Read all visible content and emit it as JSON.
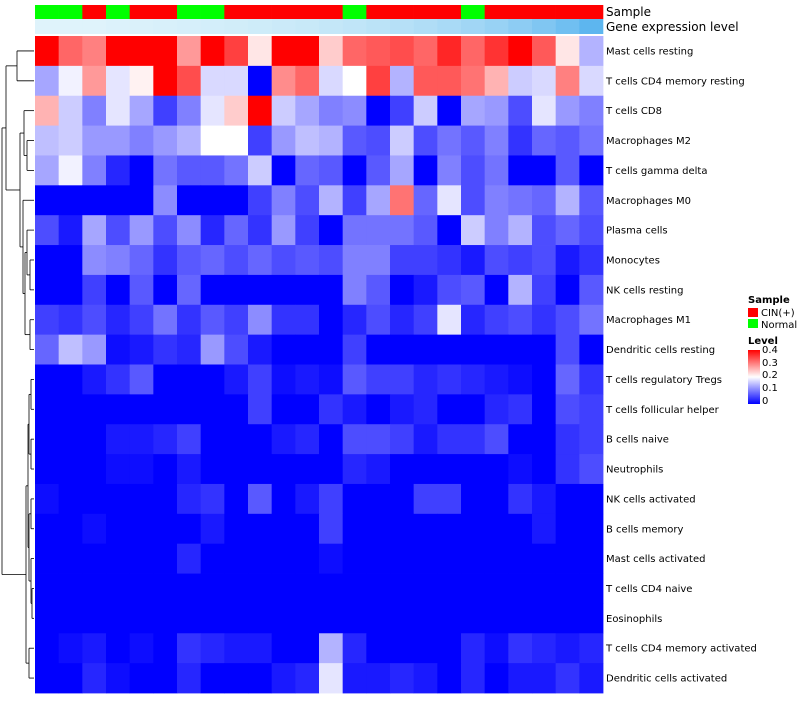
{
  "chart_data": {
    "type": "heatmap",
    "title": "",
    "xlabel": "",
    "ylabel": "",
    "value_range": [
      0,
      0.4
    ],
    "color_scale": [
      "#0000ff",
      "#ffffff",
      "#ff0000"
    ],
    "annotation_tracks": {
      "sample_label": "Sample",
      "expression_label": "Gene expression level",
      "sample": [
        "Normal",
        "Normal",
        "CIN(+)",
        "Normal",
        "CIN(+)",
        "CIN(+)",
        "Normal",
        "Normal",
        "CIN(+)",
        "CIN(+)",
        "CIN(+)",
        "CIN(+)",
        "CIN(+)",
        "Normal",
        "CIN(+)",
        "CIN(+)",
        "CIN(+)",
        "CIN(+)",
        "Normal",
        "CIN(+)",
        "CIN(+)",
        "CIN(+)",
        "CIN(+)",
        "CIN(+)"
      ],
      "expression_colors": [
        "#dff3fb",
        "#dff3fb",
        "#dff3fb",
        "#dcf2fb",
        "#daf1fa",
        "#d8f0fa",
        "#d6effa",
        "#d3eefa",
        "#d1edf9",
        "#ceecf9",
        "#cbeaf9",
        "#c8e9f8",
        "#c4e7f8",
        "#c0e5f8",
        "#bbe3f7",
        "#b6e0f7",
        "#b0ddf6",
        "#a9daf6",
        "#a1d6f5",
        "#98d2f4",
        "#8dccf3",
        "#80c6f2",
        "#70bff1",
        "#5db6ef"
      ]
    },
    "legend": {
      "sample_title": "Sample",
      "sample_items": [
        {
          "label": "CIN(+)",
          "color": "#ff0000"
        },
        {
          "label": "Normal",
          "color": "#00ff00"
        }
      ],
      "level_title": "Level",
      "level_ticks": [
        "0.4",
        "0.3",
        "0.2",
        "0.1",
        "0"
      ]
    },
    "rows": [
      "Mast cells resting",
      "T cells CD4 memory resting",
      "T cells CD8",
      "Macrophages M2",
      "T cells gamma delta",
      "Macrophages M0",
      "Plasma cells",
      "Monocytes",
      "NK cells resting",
      "Macrophages M1",
      "Dendritic cells resting",
      "T cells regulatory  Tregs",
      "T cells follicular helper",
      "B cells naive",
      "Neutrophils",
      "NK cells activated",
      "B cells memory",
      "Mast cells activated",
      "T cells CD4 naive",
      "Eosinophils",
      "T cells CD4 memory activated",
      "Dendritic cells activated"
    ],
    "values": [
      [
        0.4,
        0.32,
        0.3,
        0.4,
        0.4,
        0.4,
        0.28,
        0.4,
        0.35,
        0.22,
        0.4,
        0.4,
        0.24,
        0.32,
        0.33,
        0.34,
        0.32,
        0.37,
        0.32,
        0.36,
        0.4,
        0.33,
        0.22,
        0.14
      ],
      [
        0.13,
        0.19,
        0.28,
        0.18,
        0.21,
        0.4,
        0.34,
        0.17,
        0.17,
        0.0,
        0.29,
        0.32,
        0.17,
        0.2,
        0.35,
        0.14,
        0.33,
        0.33,
        0.31,
        0.26,
        0.16,
        0.17,
        0.3,
        0.17
      ],
      [
        0.26,
        0.16,
        0.1,
        0.18,
        0.13,
        0.05,
        0.1,
        0.18,
        0.24,
        0.4,
        0.16,
        0.13,
        0.1,
        0.11,
        0.0,
        0.05,
        0.16,
        0.0,
        0.13,
        0.12,
        0.06,
        0.18,
        0.12,
        0.1
      ],
      [
        0.15,
        0.16,
        0.12,
        0.12,
        0.1,
        0.12,
        0.14,
        0.2,
        0.2,
        0.05,
        0.12,
        0.15,
        0.14,
        0.07,
        0.06,
        0.16,
        0.06,
        0.09,
        0.07,
        0.1,
        0.04,
        0.08,
        0.07,
        0.09
      ],
      [
        0.13,
        0.19,
        0.1,
        0.03,
        0.0,
        0.09,
        0.07,
        0.07,
        0.09,
        0.16,
        0.0,
        0.08,
        0.07,
        0.0,
        0.07,
        0.13,
        0.0,
        0.1,
        0.06,
        0.09,
        0.0,
        0.0,
        0.07,
        0.0
      ],
      [
        0.0,
        0.0,
        0.0,
        0.0,
        0.0,
        0.11,
        0.0,
        0.0,
        0.0,
        0.05,
        0.1,
        0.06,
        0.14,
        0.05,
        0.13,
        0.31,
        0.08,
        0.18,
        0.06,
        0.1,
        0.09,
        0.08,
        0.14,
        0.07
      ],
      [
        0.06,
        0.02,
        0.13,
        0.06,
        0.12,
        0.06,
        0.11,
        0.03,
        0.08,
        0.04,
        0.12,
        0.05,
        0.0,
        0.09,
        0.09,
        0.09,
        0.07,
        0.0,
        0.16,
        0.1,
        0.14,
        0.06,
        0.08,
        0.06
      ],
      [
        0.0,
        0.0,
        0.11,
        0.1,
        0.08,
        0.04,
        0.07,
        0.08,
        0.06,
        0.08,
        0.06,
        0.07,
        0.06,
        0.1,
        0.1,
        0.05,
        0.05,
        0.04,
        0.02,
        0.06,
        0.05,
        0.06,
        0.02,
        0.04
      ],
      [
        0.0,
        0.0,
        0.05,
        0.0,
        0.07,
        0.0,
        0.08,
        0.0,
        0.0,
        0.0,
        0.0,
        0.0,
        0.0,
        0.1,
        0.07,
        0.0,
        0.02,
        0.06,
        0.07,
        0.0,
        0.14,
        0.05,
        0.0,
        0.07
      ],
      [
        0.05,
        0.04,
        0.06,
        0.03,
        0.05,
        0.09,
        0.04,
        0.07,
        0.05,
        0.11,
        0.04,
        0.04,
        0.0,
        0.03,
        0.06,
        0.03,
        0.05,
        0.18,
        0.03,
        0.05,
        0.06,
        0.04,
        0.06,
        0.09
      ],
      [
        0.08,
        0.15,
        0.12,
        0.01,
        0.02,
        0.04,
        0.03,
        0.12,
        0.06,
        0.02,
        0.0,
        0.0,
        0.0,
        0.05,
        0.0,
        0.0,
        0.0,
        0.0,
        0.0,
        0.0,
        0.0,
        0.0,
        0.06,
        0.0
      ],
      [
        0.0,
        0.0,
        0.02,
        0.04,
        0.07,
        0.0,
        0.0,
        0.0,
        0.02,
        0.05,
        0.01,
        0.02,
        0.01,
        0.07,
        0.05,
        0.05,
        0.03,
        0.04,
        0.03,
        0.02,
        0.01,
        0.0,
        0.08,
        0.04
      ],
      [
        0.0,
        0.0,
        0.0,
        0.0,
        0.0,
        0.0,
        0.0,
        0.0,
        0.0,
        0.05,
        0.0,
        0.0,
        0.04,
        0.02,
        0.0,
        0.02,
        0.03,
        0.0,
        0.0,
        0.03,
        0.04,
        0.0,
        0.06,
        0.05
      ],
      [
        0.0,
        0.0,
        0.0,
        0.02,
        0.02,
        0.03,
        0.05,
        0.0,
        0.0,
        0.0,
        0.02,
        0.03,
        0.0,
        0.06,
        0.06,
        0.05,
        0.02,
        0.04,
        0.04,
        0.06,
        0.0,
        0.0,
        0.04,
        0.05
      ],
      [
        0.0,
        0.0,
        0.0,
        0.01,
        0.01,
        0.0,
        0.02,
        0.0,
        0.0,
        0.0,
        0.0,
        0.0,
        0.0,
        0.03,
        0.02,
        0.0,
        0.0,
        0.0,
        0.0,
        0.0,
        0.01,
        0.0,
        0.04,
        0.06
      ],
      [
        0.01,
        0.0,
        0.0,
        0.0,
        0.0,
        0.0,
        0.03,
        0.04,
        0.0,
        0.07,
        0.0,
        0.02,
        0.05,
        0.0,
        0.0,
        0.0,
        0.05,
        0.05,
        0.0,
        0.0,
        0.04,
        0.02,
        0.0,
        0.0
      ],
      [
        0.0,
        0.0,
        0.01,
        0.0,
        0.0,
        0.0,
        0.0,
        0.02,
        0.0,
        0.0,
        0.0,
        0.0,
        0.05,
        0.0,
        0.0,
        0.0,
        0.0,
        0.0,
        0.0,
        0.0,
        0.0,
        0.02,
        0.0,
        0.0
      ],
      [
        0.0,
        0.0,
        0.0,
        0.0,
        0.0,
        0.0,
        0.03,
        0.0,
        0.0,
        0.0,
        0.0,
        0.0,
        0.01,
        0.0,
        0.0,
        0.0,
        0.0,
        0.0,
        0.0,
        0.0,
        0.0,
        0.0,
        0.0,
        0.0
      ],
      [
        0.0,
        0.0,
        0.0,
        0.0,
        0.0,
        0.0,
        0.0,
        0.0,
        0.0,
        0.0,
        0.0,
        0.0,
        0.0,
        0.0,
        0.0,
        0.0,
        0.0,
        0.0,
        0.0,
        0.0,
        0.0,
        0.0,
        0.0,
        0.0
      ],
      [
        0.0,
        0.0,
        0.0,
        0.0,
        0.0,
        0.0,
        0.0,
        0.0,
        0.0,
        0.0,
        0.0,
        0.0,
        0.0,
        0.0,
        0.0,
        0.0,
        0.0,
        0.0,
        0.0,
        0.0,
        0.0,
        0.0,
        0.0,
        0.0
      ],
      [
        0.0,
        0.01,
        0.02,
        0.0,
        0.01,
        0.0,
        0.04,
        0.03,
        0.02,
        0.02,
        0.0,
        0.0,
        0.14,
        0.03,
        0.0,
        0.0,
        0.0,
        0.0,
        0.03,
        0.01,
        0.04,
        0.03,
        0.02,
        0.03
      ],
      [
        0.0,
        0.0,
        0.03,
        0.01,
        0.0,
        0.0,
        0.03,
        0.0,
        0.0,
        0.0,
        0.02,
        0.03,
        0.18,
        0.02,
        0.02,
        0.03,
        0.02,
        0.0,
        0.03,
        0.0,
        0.02,
        0.02,
        0.04,
        0.02
      ]
    ]
  }
}
